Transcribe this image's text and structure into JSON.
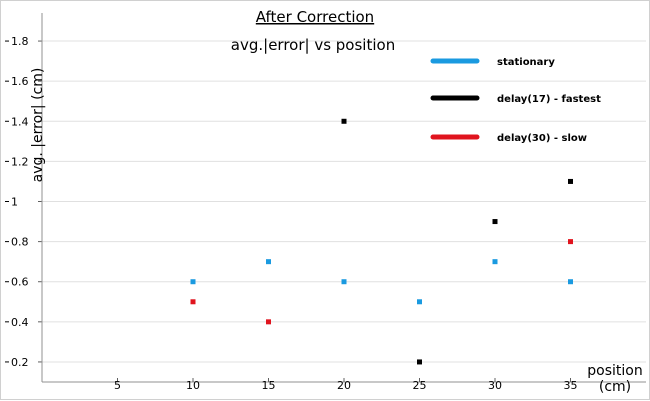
{
  "chart_data": {
    "type": "scatter",
    "title": "After Correction",
    "subtitle": "avg.|error| vs position",
    "xlabel": "position\n(cm)",
    "ylabel": "avg. |error| (cm)",
    "xlim": [
      0,
      40
    ],
    "ylim": [
      0.1,
      1.9
    ],
    "xticks": [
      5,
      10,
      15,
      20,
      25,
      30,
      35
    ],
    "xtick_labels": [
      "5",
      "10",
      "15",
      "20",
      "25",
      "30",
      "35"
    ],
    "yticks": [
      0.2,
      0.4,
      0.6,
      0.8,
      1.0,
      1.2,
      1.4,
      1.6,
      1.8
    ],
    "ytick_labels": [
      "0.2",
      "0.4",
      "0.6",
      "0.8",
      "1",
      "1.2",
      "1.4",
      "1.6",
      "1.8"
    ],
    "grid": "horizontal",
    "legend_position": "top-right",
    "series": [
      {
        "name": "stationary",
        "color": "#1a9ae0",
        "points": [
          {
            "x": 10,
            "y": 0.6
          },
          {
            "x": 15,
            "y": 0.7
          },
          {
            "x": 20,
            "y": 0.6
          },
          {
            "x": 25,
            "y": 0.5
          },
          {
            "x": 30,
            "y": 0.7
          },
          {
            "x": 35,
            "y": 0.6
          }
        ]
      },
      {
        "name": "delay(17) - fastest",
        "color": "#000000",
        "points": [
          {
            "x": 20,
            "y": 1.4
          },
          {
            "x": 25,
            "y": 0.2
          },
          {
            "x": 30,
            "y": 0.9
          },
          {
            "x": 35,
            "y": 1.1
          }
        ]
      },
      {
        "name": "delay(30) - slow",
        "color": "#e0141e",
        "points": [
          {
            "x": 10,
            "y": 0.5
          },
          {
            "x": 15,
            "y": 0.4
          },
          {
            "x": 35,
            "y": 0.8
          }
        ]
      }
    ]
  }
}
